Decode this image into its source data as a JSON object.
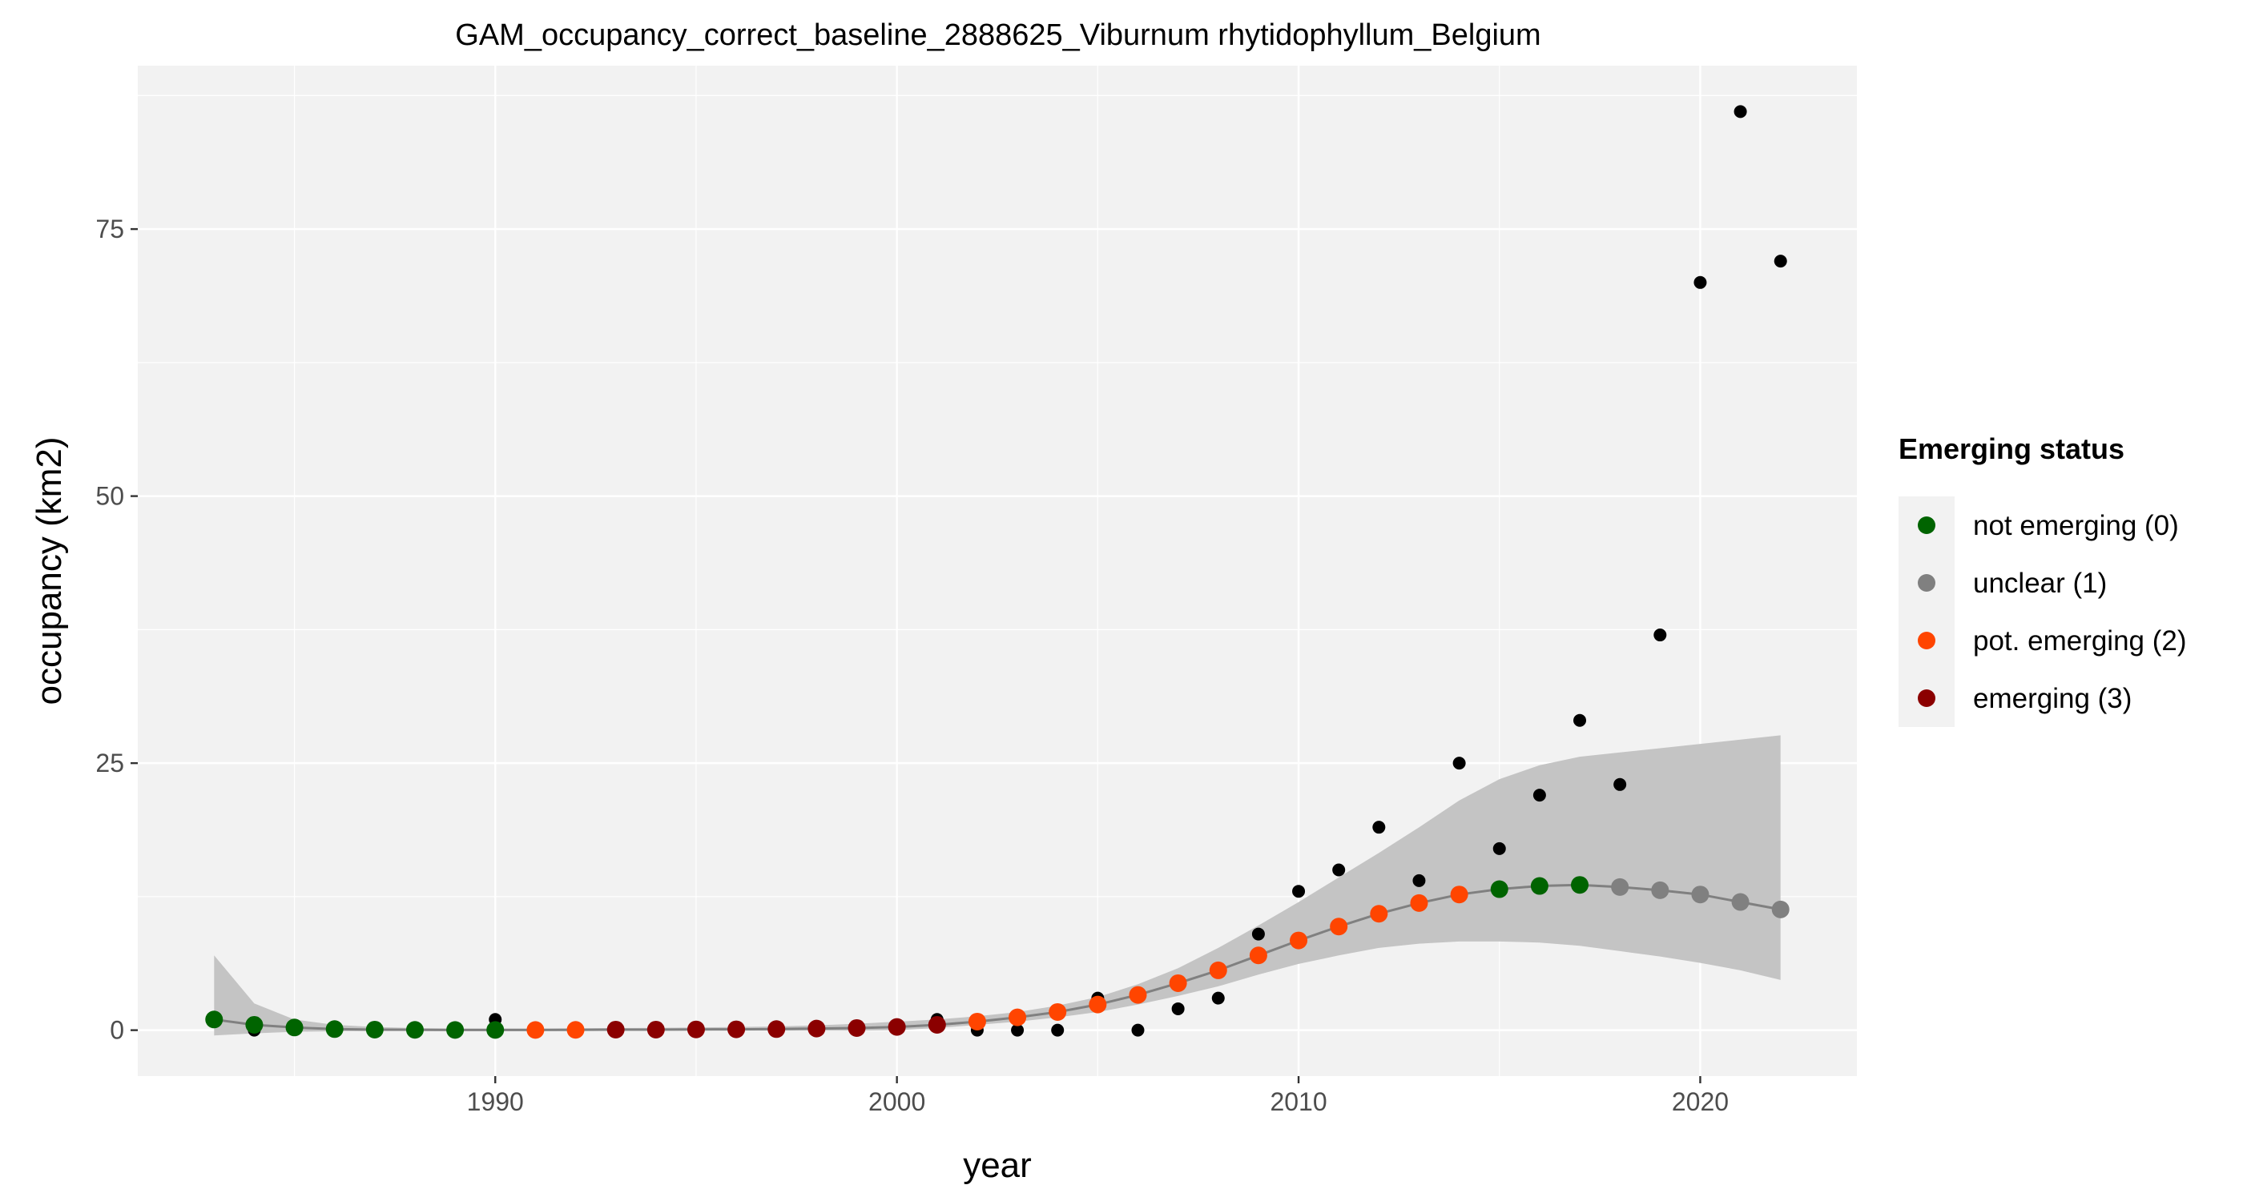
{
  "chart_data": {
    "type": "scatter",
    "title": "GAM_occupancy_correct_baseline_2888625_Viburnum rhytidophyllum_Belgium",
    "xlabel": "year",
    "ylabel": "occupancy (km2)",
    "xlim": [
      1981.1,
      2023.9
    ],
    "ylim": [
      -4.3,
      90.3
    ],
    "x_ticks": [
      1990,
      2000,
      2010,
      2020
    ],
    "x_minor_ticks": [
      1985,
      1995,
      2005,
      2015
    ],
    "y_ticks": [
      0,
      25,
      50,
      75
    ],
    "y_minor_ticks": [
      12.5,
      37.5,
      62.5,
      87.5
    ],
    "x_tick_labels": [
      "1990",
      "2000",
      "2010",
      "2020"
    ],
    "y_tick_labels": [
      "0",
      "25",
      "50",
      "75"
    ],
    "observed": {
      "color": "#000000",
      "points": [
        [
          1984,
          0
        ],
        [
          1990,
          1
        ],
        [
          2001,
          1
        ],
        [
          2002,
          0
        ],
        [
          2003,
          0
        ],
        [
          2004,
          0
        ],
        [
          2005,
          3
        ],
        [
          2006,
          0
        ],
        [
          2007,
          2
        ],
        [
          2008,
          3
        ],
        [
          2009,
          9
        ],
        [
          2010,
          13
        ],
        [
          2011,
          15
        ],
        [
          2012,
          19
        ],
        [
          2013,
          14
        ],
        [
          2014,
          25
        ],
        [
          2015,
          17
        ],
        [
          2016,
          22
        ],
        [
          2017,
          29
        ],
        [
          2018,
          23
        ],
        [
          2019,
          37
        ],
        [
          2020,
          70
        ],
        [
          2021,
          86
        ],
        [
          2022,
          72
        ]
      ]
    },
    "fit": {
      "line_color": "#808080",
      "ribbon_color": "#c4c4c4",
      "x": [
        1983,
        1984,
        1985,
        1986,
        1987,
        1988,
        1989,
        1990,
        1991,
        1992,
        1993,
        1994,
        1995,
        1996,
        1997,
        1998,
        1999,
        2000,
        2001,
        2002,
        2003,
        2004,
        2005,
        2006,
        2007,
        2008,
        2009,
        2010,
        2011,
        2012,
        2013,
        2014,
        2015,
        2016,
        2017,
        2018,
        2019,
        2020,
        2021,
        2022
      ],
      "y": [
        1.0,
        0.5,
        0.25,
        0.1,
        0.05,
        0.03,
        0.02,
        0.02,
        0.02,
        0.03,
        0.05,
        0.05,
        0.07,
        0.08,
        0.1,
        0.15,
        0.2,
        0.3,
        0.5,
        0.8,
        1.2,
        1.7,
        2.4,
        3.3,
        4.4,
        5.6,
        7.0,
        8.4,
        9.7,
        10.9,
        11.9,
        12.7,
        13.2,
        13.5,
        13.6,
        13.4,
        13.1,
        12.7,
        12.0,
        11.3
      ],
      "lower": [
        -0.5,
        -0.3,
        -0.15,
        -0.1,
        -0.08,
        -0.06,
        -0.05,
        -0.05,
        -0.05,
        -0.05,
        -0.05,
        -0.05,
        -0.05,
        -0.05,
        -0.05,
        -0.05,
        -0.05,
        0.0,
        0.2,
        0.5,
        0.8,
        1.2,
        1.7,
        2.4,
        3.2,
        4.1,
        5.2,
        6.2,
        7.0,
        7.7,
        8.1,
        8.3,
        8.3,
        8.2,
        7.9,
        7.4,
        6.9,
        6.3,
        5.6,
        4.7
      ],
      "upper": [
        7.0,
        2.5,
        1.0,
        0.5,
        0.3,
        0.2,
        0.15,
        0.15,
        0.15,
        0.18,
        0.2,
        0.22,
        0.25,
        0.3,
        0.35,
        0.45,
        0.6,
        0.8,
        1.0,
        1.3,
        1.7,
        2.3,
        3.1,
        4.3,
        5.8,
        7.7,
        9.8,
        12.0,
        14.3,
        16.6,
        19.0,
        21.5,
        23.5,
        24.8,
        25.6,
        26.0,
        26.4,
        26.8,
        27.2,
        27.6
      ],
      "status": [
        0,
        0,
        0,
        0,
        0,
        0,
        0,
        0,
        2,
        2,
        3,
        3,
        3,
        3,
        3,
        3,
        3,
        3,
        3,
        2,
        2,
        2,
        2,
        2,
        2,
        2,
        2,
        2,
        2,
        2,
        2,
        2,
        0,
        0,
        0,
        1,
        1,
        1,
        1,
        1
      ]
    },
    "legend": {
      "title": "Emerging status",
      "position": "right",
      "entries": [
        {
          "label": "not emerging (0)",
          "color": "#006400",
          "status": 0
        },
        {
          "label": "unclear (1)",
          "color": "#808080",
          "status": 1
        },
        {
          "label": "pot. emerging (2)",
          "color": "#ff4500",
          "status": 2
        },
        {
          "label": "emerging (3)",
          "color": "#8b0000",
          "status": 3
        }
      ]
    },
    "panel_background": "#f2f2f2",
    "legend_key_background": "#f2f2f2"
  }
}
